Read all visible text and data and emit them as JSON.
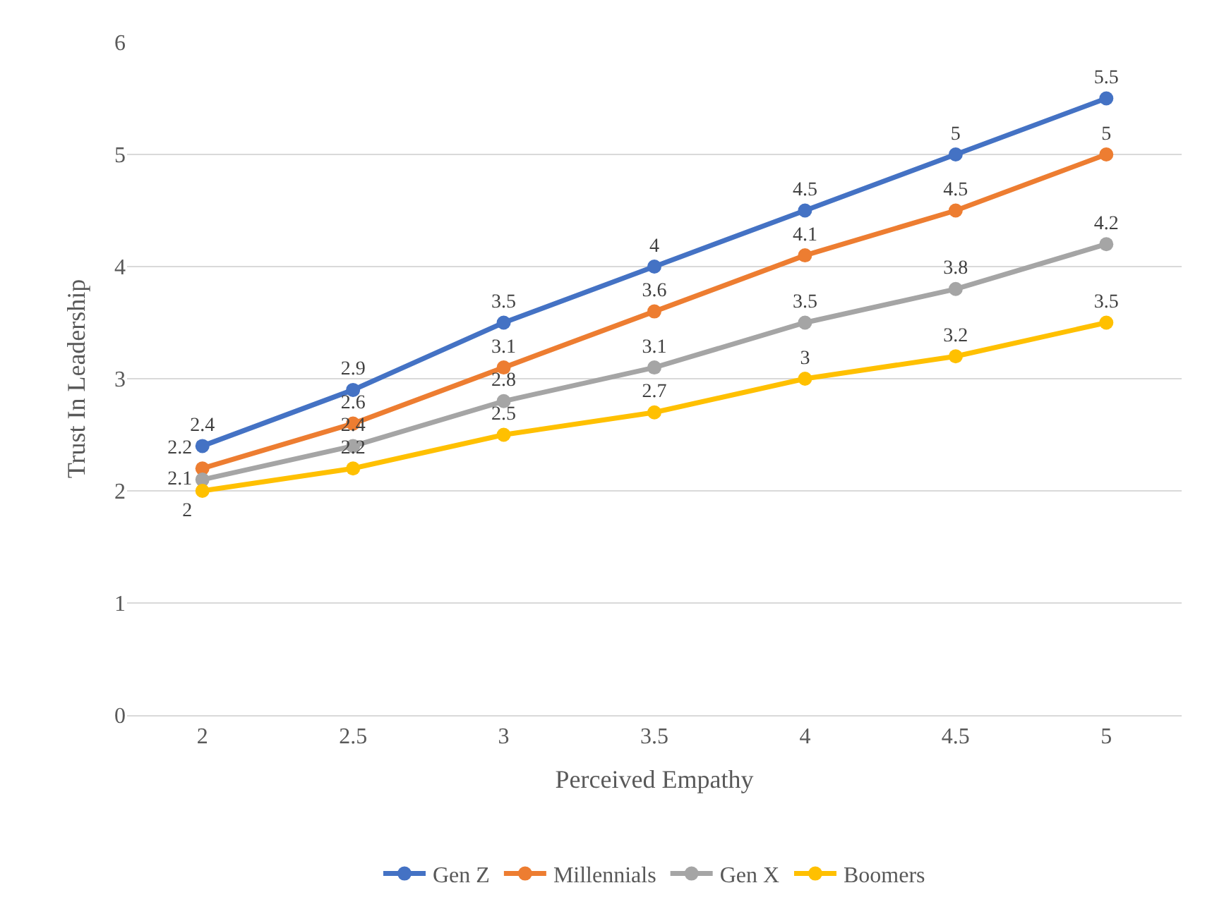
{
  "chart_data": {
    "type": "line",
    "xlabel": "Perceived Empathy",
    "ylabel": "Trust In Leadership",
    "categories": [
      "2",
      "2.5",
      "3",
      "3.5",
      "4",
      "4.5",
      "5"
    ],
    "series": [
      {
        "name": "Gen Z",
        "color": "#4472c4",
        "values": [
          2.4,
          2.9,
          3.5,
          4,
          4.5,
          5,
          5.5
        ]
      },
      {
        "name": "Millennials",
        "color": "#ed7d31",
        "values": [
          2.2,
          2.6,
          3.1,
          3.6,
          4.1,
          4.5,
          5
        ]
      },
      {
        "name": "Gen X",
        "color": "#a5a5a5",
        "values": [
          2.1,
          2.4,
          2.8,
          3.1,
          3.5,
          3.8,
          4.2
        ]
      },
      {
        "name": "Boomers",
        "color": "#ffc000",
        "values": [
          2,
          2.2,
          2.5,
          2.7,
          3,
          3.2,
          3.5
        ]
      }
    ],
    "ylim": [
      0,
      6
    ],
    "yticks": [
      0,
      1,
      2,
      3,
      4,
      5,
      6
    ],
    "grid": "y",
    "legend": "bottom",
    "marker": "circle",
    "line_style": "solid",
    "data_labels": true
  }
}
